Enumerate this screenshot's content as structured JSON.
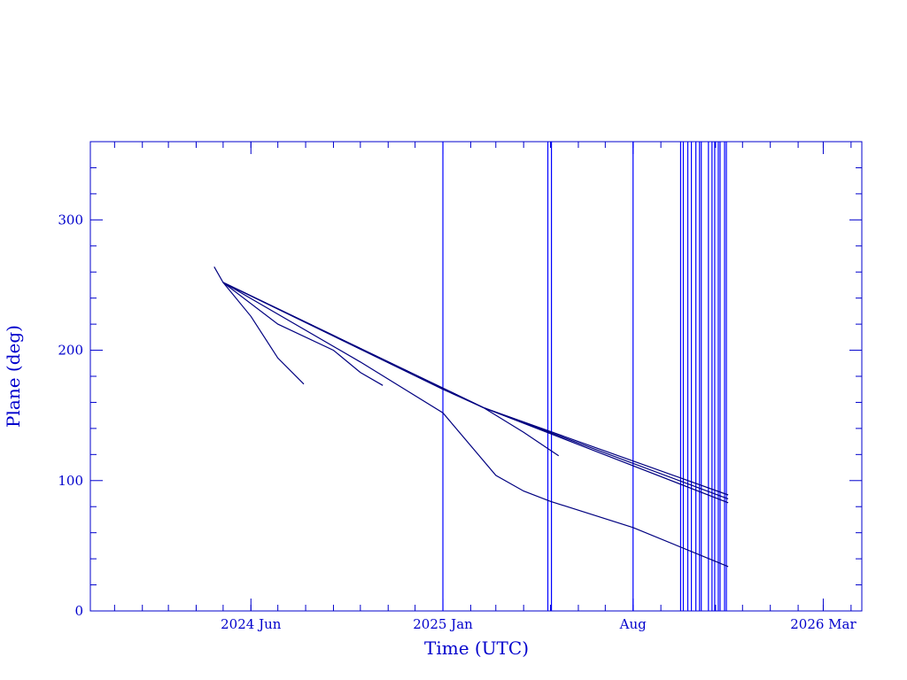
{
  "chart_data": {
    "type": "line",
    "title": "",
    "xlabel": "Time (UTC)",
    "ylabel": "Plane (deg)",
    "x_scale": "date",
    "xlim": [
      "2023-12-05",
      "2026-04-13"
    ],
    "ylim": [
      0,
      360
    ],
    "y_ticks": [
      0,
      100,
      200,
      300
    ],
    "x_ticks": [
      {
        "date": "2024-06-01",
        "label": "2024 Jun"
      },
      {
        "date": "2025-01-01",
        "label": "2025 Jan"
      },
      {
        "date": "2025-08-01",
        "label": "Aug"
      },
      {
        "date": "2026-03-01",
        "label": "2026 Mar"
      }
    ],
    "grid": false,
    "color": "#0000cc",
    "vertical_events": [
      "2025-01-01",
      "2025-04-28",
      "2025-05-02",
      "2025-08-01",
      "2025-09-23",
      "2025-09-26",
      "2025-10-01",
      "2025-10-05",
      "2025-10-10",
      "2025-10-14",
      "2025-10-16",
      "2025-10-24",
      "2025-10-28",
      "2025-10-31",
      "2025-11-04",
      "2025-11-06",
      "2025-11-11",
      "2025-11-13"
    ],
    "series": [
      {
        "points": [
          [
            "2024-04-21",
            264
          ],
          [
            "2024-05-01",
            252
          ],
          [
            "2024-06-01",
            226
          ],
          [
            "2024-07-01",
            194
          ],
          [
            "2024-07-30",
            174
          ]
        ]
      },
      {
        "points": [
          [
            "2024-05-01",
            252
          ],
          [
            "2024-07-01",
            220
          ],
          [
            "2024-09-01",
            200
          ],
          [
            "2024-10-01",
            183
          ],
          [
            "2024-10-26",
            173
          ]
        ]
      },
      {
        "points": [
          [
            "2024-05-01",
            252
          ],
          [
            "2024-10-01",
            191
          ],
          [
            "2025-01-01",
            152
          ],
          [
            "2025-03-01",
            104
          ],
          [
            "2025-04-01",
            92
          ],
          [
            "2025-05-01",
            84
          ],
          [
            "2025-08-01",
            64
          ],
          [
            "2025-11-15",
            34
          ]
        ]
      },
      {
        "points": [
          [
            "2024-05-01",
            252
          ],
          [
            "2025-01-01",
            170
          ],
          [
            "2025-02-15",
            156
          ],
          [
            "2025-04-01",
            137
          ],
          [
            "2025-05-10",
            119
          ]
        ]
      },
      {
        "points": [
          [
            "2024-05-01",
            252
          ],
          [
            "2025-02-15",
            156
          ],
          [
            "2025-11-15",
            89
          ]
        ]
      },
      {
        "points": [
          [
            "2024-05-01",
            252
          ],
          [
            "2025-02-15",
            156
          ],
          [
            "2025-11-15",
            86
          ]
        ]
      },
      {
        "points": [
          [
            "2024-05-01",
            252
          ],
          [
            "2025-02-15",
            156
          ],
          [
            "2025-11-15",
            83
          ]
        ]
      }
    ]
  }
}
